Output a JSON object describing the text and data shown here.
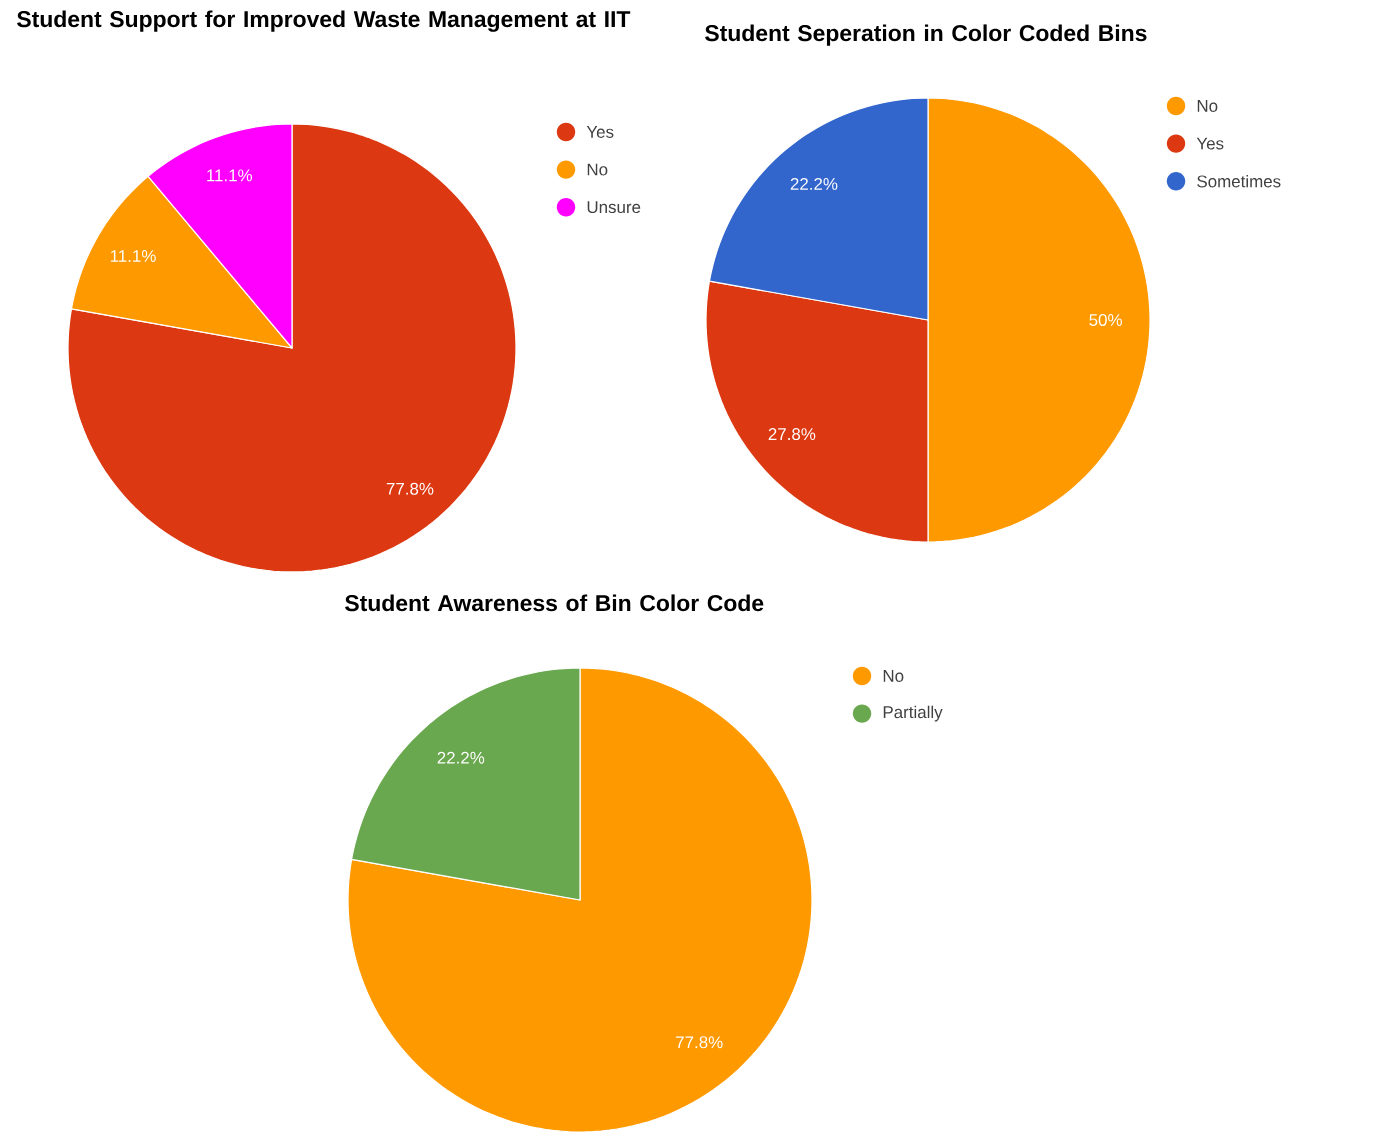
{
  "chart_data": [
    {
      "type": "pie",
      "title": "Student Support for Improved Waste Management at IIT",
      "categories": [
        "Yes",
        "No",
        "Unsure"
      ],
      "values": [
        77.8,
        11.1,
        11.1
      ],
      "colors": [
        "#dc3912",
        "#ff9900",
        "#ff00ff"
      ],
      "value_labels": [
        "77.8%",
        "11.1%",
        "11.1%"
      ],
      "legend": "right"
    },
    {
      "type": "pie",
      "title": "Student Seperation in Color Coded Bins",
      "categories": [
        "No",
        "Yes",
        "Sometimes"
      ],
      "values": [
        50,
        27.8,
        22.2
      ],
      "colors": [
        "#ff9900",
        "#dc3912",
        "#3366cc"
      ],
      "value_labels": [
        "50%",
        "27.8%",
        "22.2%"
      ],
      "legend": "right"
    },
    {
      "type": "pie",
      "title": "Student Awareness of Bin Color Code",
      "categories": [
        "No",
        "Partially"
      ],
      "values": [
        77.8,
        22.2
      ],
      "colors": [
        "#ff9900",
        "#6aa84f"
      ],
      "value_labels": [
        "77.8%",
        "22.2%"
      ],
      "legend": "right"
    }
  ]
}
